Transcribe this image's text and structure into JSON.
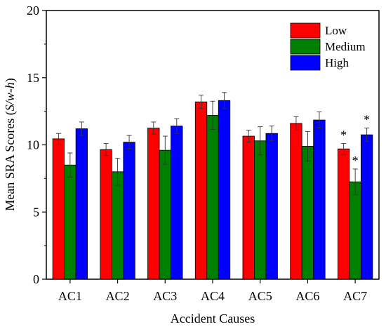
{
  "chart_data": {
    "type": "bar",
    "xlabel": "Accident Causes",
    "ylabel_parts": [
      {
        "text": "Mean SRA Scores (",
        "italic": false
      },
      {
        "text": "S/w-h",
        "italic": true
      },
      {
        "text": ")",
        "italic": false
      }
    ],
    "ylim": [
      0,
      20
    ],
    "yticks": [
      "0",
      "5",
      "10",
      "15",
      "20"
    ],
    "categories": [
      "AC1",
      "AC2",
      "AC3",
      "AC4",
      "AC5",
      "AC6",
      "AC7"
    ],
    "series": [
      {
        "name": "Low",
        "color": "#ff0000",
        "values": [
          10.45,
          9.65,
          11.25,
          13.2,
          10.65,
          11.6,
          9.7
        ],
        "errors": [
          0.4,
          0.45,
          0.45,
          0.5,
          0.45,
          0.5,
          0.4
        ],
        "significant": [
          false,
          false,
          false,
          false,
          false,
          false,
          true
        ]
      },
      {
        "name": "Medium",
        "color": "#008000",
        "values": [
          8.5,
          8.0,
          9.6,
          12.2,
          10.3,
          9.9,
          7.25
        ],
        "errors": [
          0.9,
          1.0,
          1.05,
          1.05,
          1.05,
          1.1,
          0.95
        ],
        "significant": [
          false,
          false,
          false,
          false,
          false,
          false,
          true
        ]
      },
      {
        "name": "High",
        "color": "#0000ff",
        "values": [
          11.2,
          10.2,
          11.4,
          13.3,
          10.85,
          11.85,
          10.75
        ],
        "errors": [
          0.5,
          0.5,
          0.55,
          0.6,
          0.55,
          0.6,
          0.5
        ],
        "significant": [
          false,
          false,
          false,
          false,
          false,
          false,
          true
        ]
      }
    ],
    "significance_marker": "*",
    "legend_position": "top-right",
    "grid": false
  }
}
